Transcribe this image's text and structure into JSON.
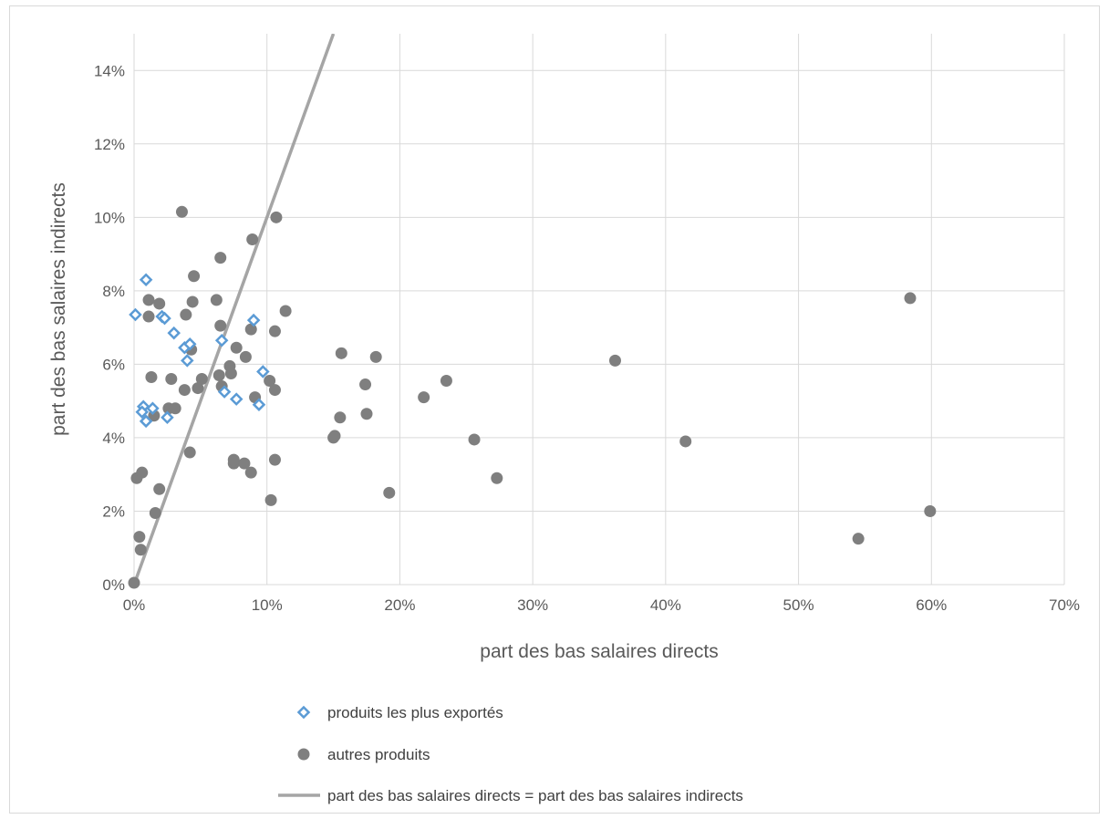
{
  "chart_data": {
    "type": "scatter",
    "title": "",
    "xlabel": "part des bas salaires directs",
    "ylabel": "part des bas salaires indirects",
    "xlim": [
      0,
      70
    ],
    "ylim": [
      0,
      15
    ],
    "x_ticks": [
      0,
      10,
      20,
      30,
      40,
      50,
      60,
      70
    ],
    "y_ticks": [
      0,
      2,
      4,
      6,
      8,
      10,
      12,
      14
    ],
    "x_tick_labels": [
      "0%",
      "10%",
      "20%",
      "30%",
      "40%",
      "50%",
      "60%",
      "70%"
    ],
    "y_tick_labels": [
      "0%",
      "2%",
      "4%",
      "6%",
      "8%",
      "10%",
      "12%",
      "14%"
    ],
    "grid": "vertical and horizontal major gridlines",
    "legend_position": "bottom",
    "series": [
      {
        "name": "produits les plus exportés",
        "marker": "diamond-open",
        "color": "#5b9bd5",
        "points": [
          [
            0.1,
            7.35
          ],
          [
            0.9,
            8.3
          ],
          [
            2.1,
            7.3
          ],
          [
            2.3,
            7.25
          ],
          [
            3.0,
            6.85
          ],
          [
            3.8,
            6.45
          ],
          [
            4.2,
            6.55
          ],
          [
            4.0,
            6.1
          ],
          [
            6.6,
            6.65
          ],
          [
            9.0,
            7.2
          ],
          [
            9.7,
            5.8
          ],
          [
            7.7,
            5.05
          ],
          [
            6.8,
            5.25
          ],
          [
            9.4,
            4.9
          ],
          [
            0.7,
            4.85
          ],
          [
            1.4,
            4.8
          ],
          [
            0.6,
            4.7
          ],
          [
            2.5,
            4.55
          ],
          [
            0.9,
            4.45
          ]
        ]
      },
      {
        "name": "autres produits",
        "marker": "circle",
        "color": "#7f7f7f",
        "points": [
          [
            0.0,
            0.05
          ],
          [
            0.5,
            0.95
          ],
          [
            0.4,
            1.3
          ],
          [
            0.2,
            2.9
          ],
          [
            0.6,
            3.05
          ],
          [
            1.6,
            1.95
          ],
          [
            1.9,
            2.6
          ],
          [
            1.3,
            5.65
          ],
          [
            1.5,
            4.6
          ],
          [
            1.1,
            7.75
          ],
          [
            1.1,
            7.3
          ],
          [
            1.9,
            7.65
          ],
          [
            2.6,
            4.8
          ],
          [
            2.8,
            5.6
          ],
          [
            3.1,
            4.8
          ],
          [
            3.6,
            10.15
          ],
          [
            3.8,
            5.3
          ],
          [
            3.9,
            7.35
          ],
          [
            4.2,
            3.6
          ],
          [
            4.3,
            6.4
          ],
          [
            4.5,
            8.4
          ],
          [
            4.4,
            7.7
          ],
          [
            4.8,
            5.35
          ],
          [
            5.1,
            5.6
          ],
          [
            6.2,
            7.75
          ],
          [
            6.4,
            5.7
          ],
          [
            6.5,
            7.05
          ],
          [
            6.5,
            8.9
          ],
          [
            6.6,
            5.4
          ],
          [
            7.2,
            5.95
          ],
          [
            7.3,
            5.75
          ],
          [
            7.5,
            3.3
          ],
          [
            7.5,
            3.4
          ],
          [
            7.7,
            6.45
          ],
          [
            8.3,
            3.3
          ],
          [
            8.4,
            6.2
          ],
          [
            8.8,
            3.05
          ],
          [
            8.8,
            6.95
          ],
          [
            8.9,
            9.4
          ],
          [
            9.1,
            5.1
          ],
          [
            10.2,
            5.55
          ],
          [
            10.3,
            2.3
          ],
          [
            10.6,
            3.4
          ],
          [
            10.6,
            5.3
          ],
          [
            10.6,
            6.9
          ],
          [
            10.7,
            10.0
          ],
          [
            11.4,
            7.45
          ],
          [
            15.0,
            4.0
          ],
          [
            15.1,
            4.05
          ],
          [
            15.5,
            4.55
          ],
          [
            15.6,
            6.3
          ],
          [
            17.4,
            5.45
          ],
          [
            17.5,
            4.65
          ],
          [
            18.2,
            6.2
          ],
          [
            19.2,
            2.5
          ],
          [
            21.8,
            5.1
          ],
          [
            23.5,
            5.55
          ],
          [
            25.6,
            3.95
          ],
          [
            27.3,
            2.9
          ],
          [
            36.2,
            6.1
          ],
          [
            41.5,
            3.9
          ],
          [
            54.5,
            1.25
          ],
          [
            58.4,
            7.8
          ],
          [
            59.9,
            2.0
          ]
        ]
      },
      {
        "name": "part des bas salaires directs = part des bas salaires indirects",
        "marker": "line",
        "color": "#a5a5a5",
        "points": [
          [
            0,
            0
          ],
          [
            15,
            15
          ]
        ]
      }
    ]
  }
}
